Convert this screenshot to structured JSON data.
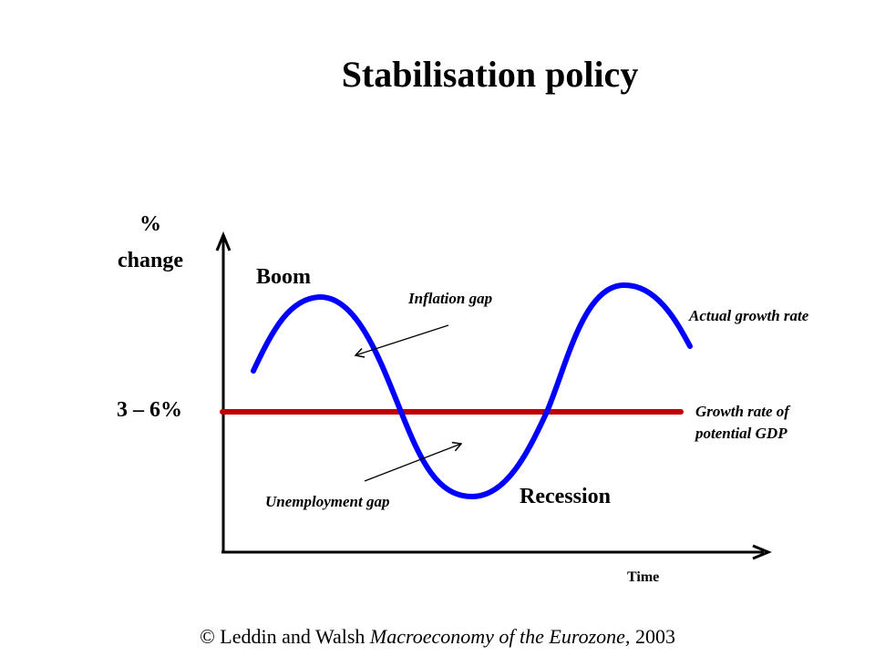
{
  "title": "Stabilisation policy",
  "y_axis_label": [
    "%",
    "change"
  ],
  "x_axis_label": "Time",
  "potential_band_label": "3 – 6%",
  "annotations": {
    "boom": "Boom",
    "recession": "Recession",
    "inflation_gap": "Inflation gap",
    "unemployment_gap": "Unemployment gap",
    "actual_growth_rate": "Actual growth rate",
    "potential_gdp": [
      "Growth rate of",
      "potential GDP"
    ]
  },
  "footer": {
    "copyright": "©",
    "author": "Leddin and Walsh",
    "book": "Macroeconomy of the Eurozone,",
    "year": "2003"
  },
  "colors": {
    "actual_curve": "#0000ff",
    "potential_line": "#c00000",
    "axes": "#000000"
  }
}
